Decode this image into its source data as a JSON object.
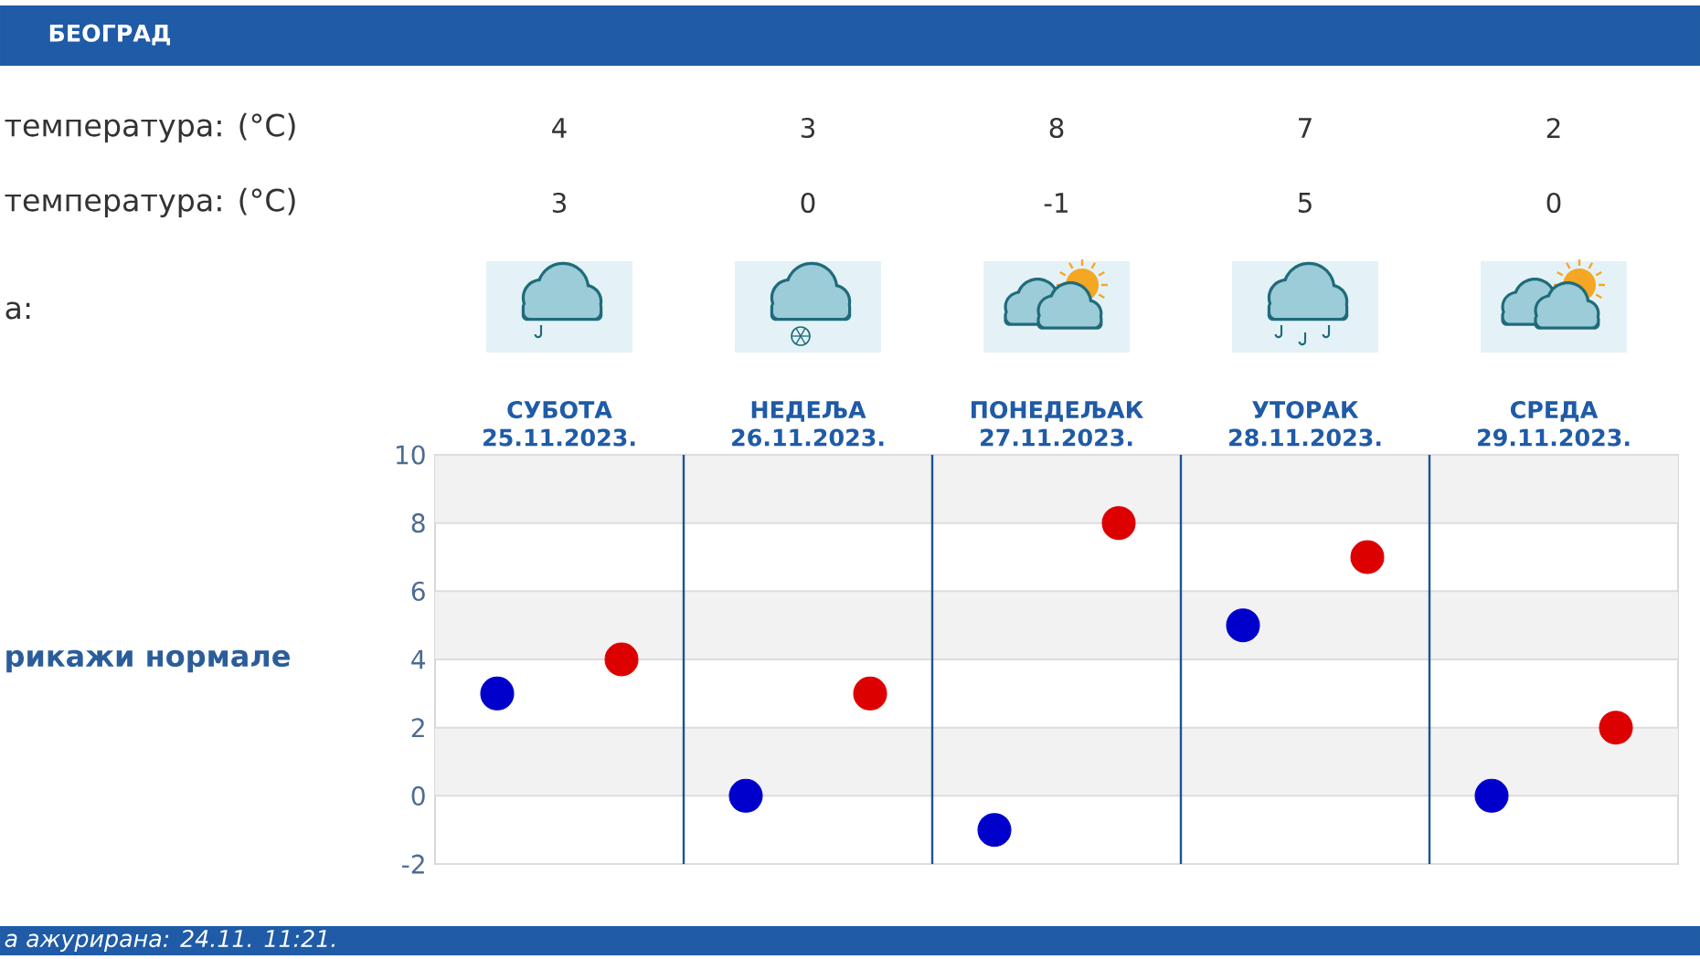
{
  "chart_data": {
    "type": "scatter",
    "title": "БЕОГРАД",
    "categories": [
      "СУБОТА 25.11.2023.",
      "НЕДЕЉА 26.11.2023.",
      "ПОНЕДЕЉАК 27.11.2023.",
      "УТОРАК 28.11.2023.",
      "СРЕДА 29.11.2023."
    ],
    "series": [
      {
        "color": "#dd0000",
        "values": [
          4,
          3,
          8,
          7,
          2
        ]
      },
      {
        "color": "#0000cc",
        "values": [
          3,
          0,
          -1,
          5,
          0
        ]
      }
    ],
    "ylim": [
      -2,
      10
    ],
    "yticks": [
      -2,
      0,
      2,
      4,
      6,
      8,
      10
    ],
    "grid": true,
    "marker": "circle",
    "data_labels": true,
    "annotations": [
      "температура: (°C)",
      "температура: (°C)",
      "а:",
      "рикажи нормале",
      "а ажурирана: 24.11. 11:21."
    ]
  }
}
